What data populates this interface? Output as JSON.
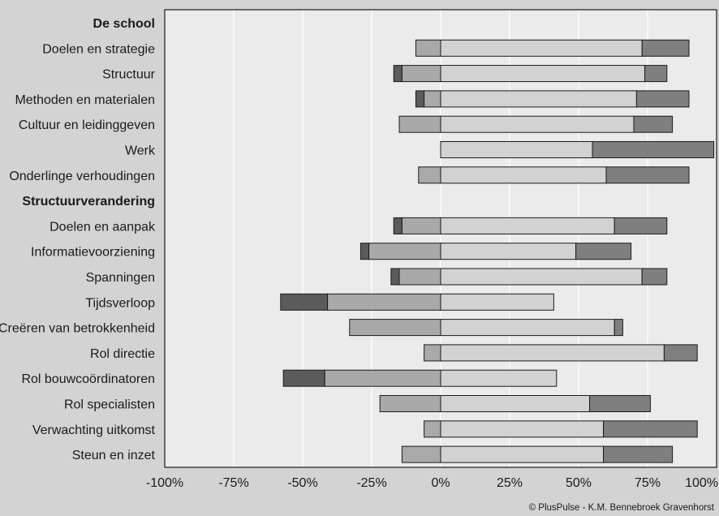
{
  "chart_data": {
    "type": "bar",
    "orientation": "horizontal",
    "stacked": "diverging",
    "categories": [
      {
        "label": "De school",
        "header": true
      },
      {
        "label": "Doelen en strategie",
        "values": [
          0,
          -9,
          73,
          17
        ]
      },
      {
        "label": "Structuur",
        "values": [
          -3,
          -14,
          74,
          8
        ]
      },
      {
        "label": "Methoden en materialen",
        "values": [
          -3,
          -6,
          71,
          19
        ]
      },
      {
        "label": "Cultuur en leidinggeven",
        "values": [
          0,
          -15,
          70,
          14
        ]
      },
      {
        "label": "Werk",
        "values": [
          0,
          0,
          55,
          44
        ]
      },
      {
        "label": "Onderlinge verhoudingen",
        "values": [
          0,
          -8,
          60,
          30
        ]
      },
      {
        "label": "Structuurverandering",
        "header": true
      },
      {
        "label": "Doelen en aanpak",
        "values": [
          -3,
          -14,
          63,
          19
        ]
      },
      {
        "label": "Informatievoorziening",
        "values": [
          -3,
          -26,
          49,
          20
        ]
      },
      {
        "label": "Spanningen",
        "values": [
          -3,
          -15,
          73,
          9
        ]
      },
      {
        "label": "Tijdsverloop",
        "values": [
          -17,
          -41,
          41,
          0
        ]
      },
      {
        "label": "Creëren van betrokkenheid",
        "values": [
          0,
          -33,
          63,
          3
        ]
      },
      {
        "label": "Rol directie",
        "values": [
          0,
          -6,
          81,
          12
        ]
      },
      {
        "label": "Rol bouwcoördinatoren",
        "values": [
          -15,
          -42,
          42,
          0
        ]
      },
      {
        "label": "Rol specialisten",
        "values": [
          0,
          -22,
          54,
          22
        ]
      },
      {
        "label": "Verwachting uitkomst",
        "values": [
          0,
          -6,
          59,
          34
        ]
      },
      {
        "label": "Steun en inzet",
        "values": [
          0,
          -14,
          59,
          25
        ]
      }
    ],
    "segment_order": [
      "strongly-negative",
      "negative",
      "positive",
      "strongly-positive"
    ],
    "xlim": [
      -100,
      100
    ],
    "xticks": [
      "-100%",
      "-75%",
      "-50%",
      "-25%",
      "0%",
      "25%",
      "50%",
      "75%",
      "100%"
    ],
    "tick_values": [
      -100,
      -75,
      -50,
      -25,
      0,
      25,
      50,
      75,
      100
    ],
    "grid": "vertical",
    "legend": "none",
    "credit": "© PlusPulse - K.M. Bennebroek Gravenhorst"
  },
  "colors": {
    "page_background": "#d3d3d3",
    "plot_background": "#ebebeb",
    "grid": "#ffffff",
    "strongly_negative": "#5b5b5b",
    "negative": "#a9a9a9",
    "positive": "#d2d2d2",
    "strongly_positive": "#7f7f7f",
    "outline": "#1a1a1a"
  }
}
